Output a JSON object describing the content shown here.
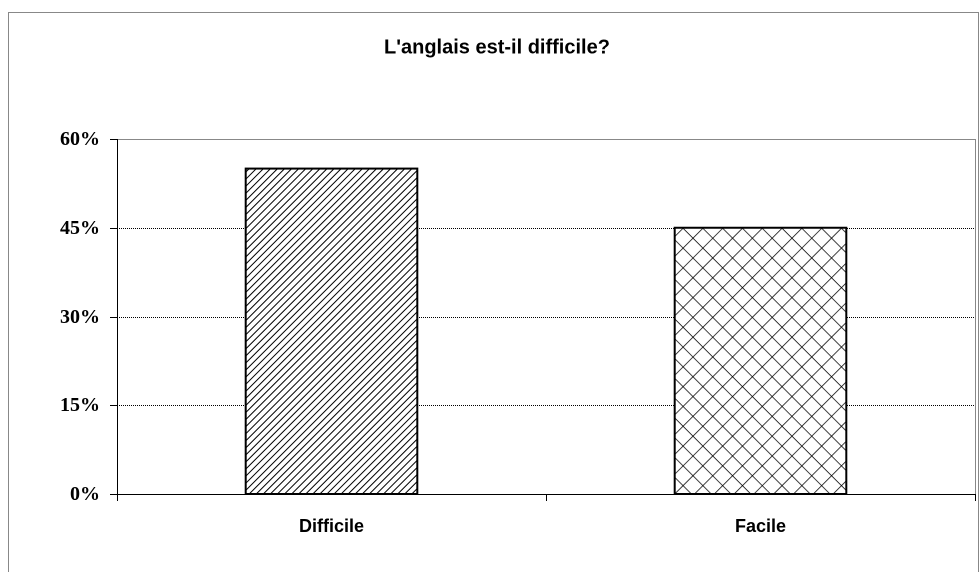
{
  "chart_data": {
    "type": "bar",
    "title": "L'anglais est-il difficile?",
    "categories": [
      "Difficile",
      "Facile"
    ],
    "values": [
      55,
      45
    ],
    "color": "#000000",
    "patterns": [
      "diagonal",
      "crosshatch"
    ],
    "ylim": [
      0,
      60
    ],
    "yticks": [
      {
        "value": 0,
        "label": "0%"
      },
      {
        "value": 15,
        "label": "15%"
      },
      {
        "value": 30,
        "label": "30%"
      },
      {
        "value": 45,
        "label": "45%"
      },
      {
        "value": 60,
        "label": "60%"
      }
    ],
    "grid": true
  }
}
